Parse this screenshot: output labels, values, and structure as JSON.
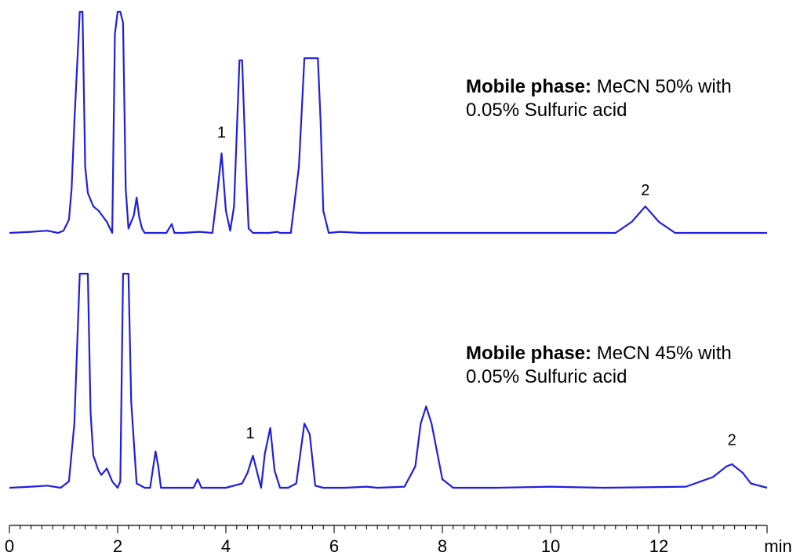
{
  "chart_data": {
    "type": "line",
    "x_axis": {
      "unit_label": "min",
      "xlim": [
        0,
        14
      ],
      "ticks": [
        "0",
        "2",
        "4",
        "6",
        "8",
        "10",
        "12"
      ],
      "minor_tick_step": 0.2
    },
    "series": [
      {
        "mobile_phase_bold": "Mobile phase:",
        "mobile_phase_line1": "MeCN 50% with",
        "mobile_phase_line2": "0.05% Sulfuric acid",
        "x": [
          0.0,
          0.4,
          0.7,
          0.9,
          1.0,
          1.1,
          1.15,
          1.2,
          1.3,
          1.35,
          1.4,
          1.45,
          1.55,
          1.65,
          1.8,
          1.9,
          1.95,
          2.0,
          2.05,
          2.1,
          2.15,
          2.2,
          2.3,
          2.35,
          2.4,
          2.45,
          2.5,
          2.6,
          2.9,
          3.0,
          3.05,
          3.1,
          3.2,
          3.5,
          3.75,
          3.85,
          3.92,
          4.0,
          4.08,
          4.15,
          4.25,
          4.3,
          4.37,
          4.42,
          4.5,
          4.55,
          4.6,
          4.8,
          4.95,
          5.0,
          5.05,
          5.2,
          5.35,
          5.45,
          5.5,
          5.6,
          5.7,
          5.75,
          5.8,
          5.9,
          6.1,
          6.5,
          8.0,
          10.0,
          11.2,
          11.5,
          11.75,
          12.0,
          12.3,
          12.8,
          13.5,
          14.0
        ],
        "y": [
          0.0,
          0.005,
          0.01,
          0.0,
          0.01,
          0.06,
          0.2,
          0.5,
          1.0,
          1.0,
          0.3,
          0.18,
          0.12,
          0.1,
          0.05,
          0.0,
          0.9,
          1.0,
          1.0,
          0.95,
          0.2,
          0.02,
          0.08,
          0.16,
          0.07,
          0.02,
          0.0,
          0.0,
          0.0,
          0.04,
          0.0,
          0.0,
          0.0,
          0.005,
          0.0,
          0.2,
          0.36,
          0.1,
          0.01,
          0.12,
          0.78,
          0.78,
          0.3,
          0.02,
          0.0,
          0.0,
          0.0,
          0.0,
          0.005,
          0.0,
          0.0,
          0.0,
          0.3,
          0.79,
          0.79,
          0.79,
          0.79,
          0.5,
          0.1,
          0.0,
          0.005,
          0.0,
          0.0,
          0.0,
          0.0,
          0.05,
          0.12,
          0.05,
          0.0,
          0.0,
          0.0,
          0.0
        ],
        "peak_labels": [
          {
            "text": "1",
            "x": 3.92,
            "y": 0.43
          },
          {
            "text": "2",
            "x": 11.75,
            "y": 0.17
          }
        ]
      },
      {
        "mobile_phase_bold": "Mobile phase:",
        "mobile_phase_line1": "MeCN 45% with",
        "mobile_phase_line2": "0.05% Sulfuric acid",
        "x": [
          0.0,
          0.4,
          0.7,
          0.95,
          1.1,
          1.2,
          1.3,
          1.45,
          1.5,
          1.55,
          1.65,
          1.7,
          1.8,
          1.9,
          2.0,
          2.05,
          2.1,
          2.2,
          2.25,
          2.35,
          2.5,
          2.6,
          2.7,
          2.75,
          2.8,
          3.0,
          3.4,
          3.48,
          3.55,
          3.7,
          4.0,
          4.3,
          4.4,
          4.5,
          4.58,
          4.65,
          4.72,
          4.82,
          4.9,
          5.0,
          5.15,
          5.3,
          5.45,
          5.55,
          5.65,
          5.8,
          6.2,
          6.6,
          6.8,
          7.3,
          7.5,
          7.6,
          7.7,
          7.8,
          8.0,
          8.2,
          9.0,
          10.0,
          11.0,
          12.5,
          13.0,
          13.25,
          13.35,
          13.55,
          13.7,
          14.0
        ],
        "y": [
          0.0,
          0.005,
          0.01,
          0.0,
          0.03,
          0.3,
          1.0,
          1.0,
          0.35,
          0.15,
          0.08,
          0.06,
          0.09,
          0.03,
          0.0,
          0.03,
          1.0,
          1.0,
          0.4,
          0.02,
          0.0,
          0.0,
          0.17,
          0.1,
          0.0,
          0.0,
          0.0,
          0.04,
          0.0,
          0.0,
          0.0,
          0.02,
          0.07,
          0.15,
          0.07,
          0.0,
          0.16,
          0.28,
          0.08,
          0.0,
          0.0,
          0.02,
          0.3,
          0.25,
          0.01,
          0.0,
          0.0,
          0.005,
          0.0,
          0.005,
          0.1,
          0.3,
          0.38,
          0.3,
          0.04,
          0.0,
          0.0,
          0.005,
          0.0,
          0.005,
          0.05,
          0.1,
          0.11,
          0.07,
          0.02,
          0.0
        ],
        "peak_labels": [
          {
            "text": "1",
            "x": 4.45,
            "y": 0.23
          },
          {
            "text": "2",
            "x": 13.35,
            "y": 0.2
          }
        ]
      }
    ]
  }
}
